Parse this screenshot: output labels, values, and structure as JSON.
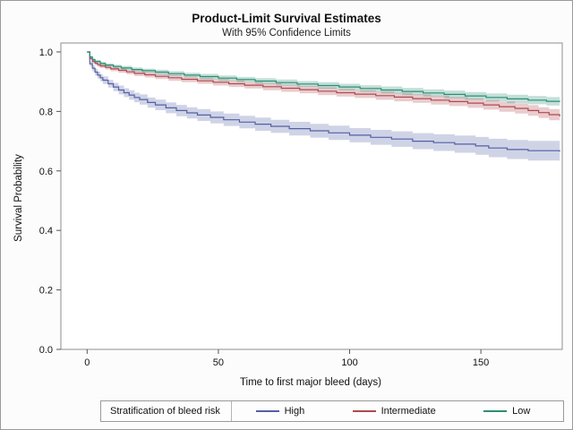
{
  "legend": {
    "title": "Stratification of bleed risk"
  },
  "chart_data": {
    "type": "line",
    "subtype": "kaplan-meier-step-with-confidence-bands",
    "title": "Product-Limit Survival Estimates",
    "subtitle": "With 95% Confidence Limits",
    "xlabel": "Time to first major bleed (days)",
    "ylabel": "Survival Probability",
    "confidence_level": "95%",
    "xlim": [
      -10,
      181
    ],
    "ylim": [
      0,
      1.03
    ],
    "xticks": [
      0,
      50,
      100,
      150
    ],
    "yticks": [
      0.0,
      0.2,
      0.4,
      0.6,
      0.8,
      1.0
    ],
    "grid": false,
    "legend_position": "bottom",
    "frame_color": "#8e8e8e",
    "series": [
      {
        "name": "High",
        "color": "#5460a5",
        "band": "rgba(84,96,165,0.28)",
        "points": [
          [
            0,
            1.0,
            0
          ],
          [
            1,
            0.96,
            0.008
          ],
          [
            2,
            0.945,
            0.01
          ],
          [
            3,
            0.932,
            0.011
          ],
          [
            4,
            0.922,
            0.012
          ],
          [
            5,
            0.913,
            0.012
          ],
          [
            6,
            0.905,
            0.013
          ],
          [
            8,
            0.893,
            0.013
          ],
          [
            10,
            0.882,
            0.014
          ],
          [
            12,
            0.872,
            0.015
          ],
          [
            14,
            0.863,
            0.015
          ],
          [
            16,
            0.855,
            0.016
          ],
          [
            18,
            0.847,
            0.016
          ],
          [
            20,
            0.84,
            0.017
          ],
          [
            23,
            0.83,
            0.017
          ],
          [
            26,
            0.822,
            0.018
          ],
          [
            30,
            0.812,
            0.018
          ],
          [
            34,
            0.803,
            0.019
          ],
          [
            38,
            0.795,
            0.019
          ],
          [
            42,
            0.788,
            0.02
          ],
          [
            47,
            0.78,
            0.02
          ],
          [
            52,
            0.772,
            0.021
          ],
          [
            58,
            0.764,
            0.021
          ],
          [
            64,
            0.757,
            0.022
          ],
          [
            70,
            0.75,
            0.022
          ],
          [
            77,
            0.742,
            0.023
          ],
          [
            85,
            0.735,
            0.023
          ],
          [
            92,
            0.728,
            0.024
          ],
          [
            100,
            0.72,
            0.024
          ],
          [
            108,
            0.713,
            0.025
          ],
          [
            116,
            0.707,
            0.026
          ],
          [
            124,
            0.7,
            0.027
          ],
          [
            132,
            0.695,
            0.028
          ],
          [
            140,
            0.69,
            0.029
          ],
          [
            148,
            0.684,
            0.03
          ],
          [
            153,
            0.677,
            0.031
          ],
          [
            160,
            0.672,
            0.032
          ],
          [
            168,
            0.668,
            0.033
          ],
          [
            180,
            0.665,
            0.034
          ]
        ]
      },
      {
        "name": "Intermediate",
        "color": "#b0494f",
        "band": "rgba(176,73,79,0.28)",
        "points": [
          [
            0,
            1.0,
            0
          ],
          [
            1,
            0.978,
            0.005
          ],
          [
            2,
            0.968,
            0.006
          ],
          [
            3,
            0.962,
            0.006
          ],
          [
            4,
            0.957,
            0.007
          ],
          [
            5,
            0.953,
            0.007
          ],
          [
            7,
            0.948,
            0.007
          ],
          [
            9,
            0.943,
            0.008
          ],
          [
            12,
            0.938,
            0.008
          ],
          [
            15,
            0.933,
            0.008
          ],
          [
            18,
            0.928,
            0.009
          ],
          [
            22,
            0.923,
            0.009
          ],
          [
            26,
            0.918,
            0.009
          ],
          [
            31,
            0.913,
            0.01
          ],
          [
            36,
            0.908,
            0.01
          ],
          [
            42,
            0.903,
            0.01
          ],
          [
            48,
            0.898,
            0.011
          ],
          [
            54,
            0.893,
            0.011
          ],
          [
            60,
            0.888,
            0.011
          ],
          [
            67,
            0.883,
            0.012
          ],
          [
            74,
            0.878,
            0.012
          ],
          [
            81,
            0.873,
            0.012
          ],
          [
            88,
            0.868,
            0.013
          ],
          [
            95,
            0.863,
            0.013
          ],
          [
            102,
            0.858,
            0.013
          ],
          [
            110,
            0.853,
            0.014
          ],
          [
            117,
            0.848,
            0.014
          ],
          [
            124,
            0.843,
            0.014
          ],
          [
            131,
            0.838,
            0.015
          ],
          [
            138,
            0.833,
            0.015
          ],
          [
            145,
            0.828,
            0.016
          ],
          [
            151,
            0.822,
            0.016
          ],
          [
            157,
            0.816,
            0.017
          ],
          [
            163,
            0.81,
            0.017
          ],
          [
            168,
            0.803,
            0.018
          ],
          [
            172,
            0.796,
            0.018
          ],
          [
            176,
            0.789,
            0.019
          ],
          [
            180,
            0.783,
            0.019
          ]
        ]
      },
      {
        "name": "Low",
        "color": "#2c8d74",
        "band": "rgba(44,141,116,0.28)",
        "points": [
          [
            0,
            1.0,
            0
          ],
          [
            1,
            0.983,
            0.004
          ],
          [
            2,
            0.974,
            0.005
          ],
          [
            3,
            0.968,
            0.005
          ],
          [
            5,
            0.961,
            0.006
          ],
          [
            7,
            0.956,
            0.006
          ],
          [
            10,
            0.951,
            0.006
          ],
          [
            13,
            0.946,
            0.007
          ],
          [
            17,
            0.941,
            0.007
          ],
          [
            21,
            0.937,
            0.007
          ],
          [
            26,
            0.932,
            0.008
          ],
          [
            31,
            0.927,
            0.008
          ],
          [
            37,
            0.922,
            0.008
          ],
          [
            43,
            0.917,
            0.009
          ],
          [
            50,
            0.912,
            0.009
          ],
          [
            57,
            0.907,
            0.009
          ],
          [
            64,
            0.902,
            0.01
          ],
          [
            72,
            0.897,
            0.01
          ],
          [
            80,
            0.892,
            0.01
          ],
          [
            88,
            0.887,
            0.011
          ],
          [
            96,
            0.882,
            0.011
          ],
          [
            104,
            0.877,
            0.011
          ],
          [
            112,
            0.872,
            0.012
          ],
          [
            120,
            0.867,
            0.012
          ],
          [
            128,
            0.862,
            0.012
          ],
          [
            136,
            0.857,
            0.013
          ],
          [
            144,
            0.852,
            0.013
          ],
          [
            152,
            0.847,
            0.013
          ],
          [
            160,
            0.842,
            0.014
          ],
          [
            168,
            0.838,
            0.014
          ],
          [
            175,
            0.834,
            0.014
          ],
          [
            180,
            0.832,
            0.014
          ]
        ]
      }
    ]
  }
}
